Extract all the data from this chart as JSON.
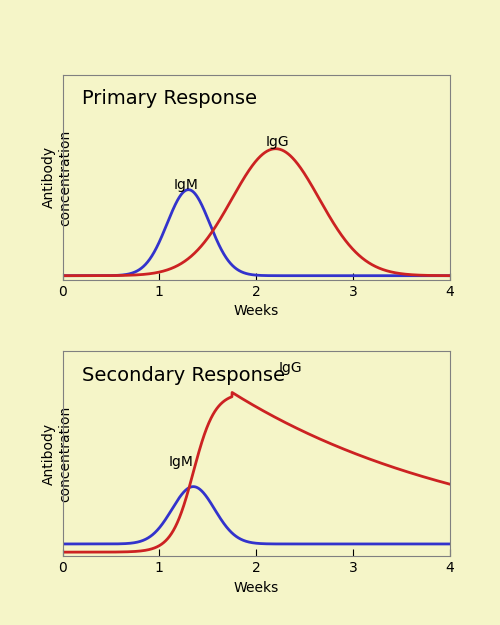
{
  "background_color": "#f5f5c8",
  "outer_bg": "#f5f5c8",
  "line_color_IgM": "#3333cc",
  "line_color_IgG": "#cc2222",
  "xlim": [
    0,
    4
  ],
  "xticks": [
    0,
    1,
    2,
    3,
    4
  ],
  "xlabel": "Weeks",
  "ylabel": "Antibody\nconcentration",
  "title_primary": "Primary Response",
  "title_secondary": "Secondary Response",
  "label_IgM": "IgM",
  "label_IgG": "IgG",
  "line_width": 2.0,
  "title_fontsize": 14,
  "axis_label_fontsize": 10,
  "annotation_fontsize": 10,
  "tick_label_fontsize": 10
}
